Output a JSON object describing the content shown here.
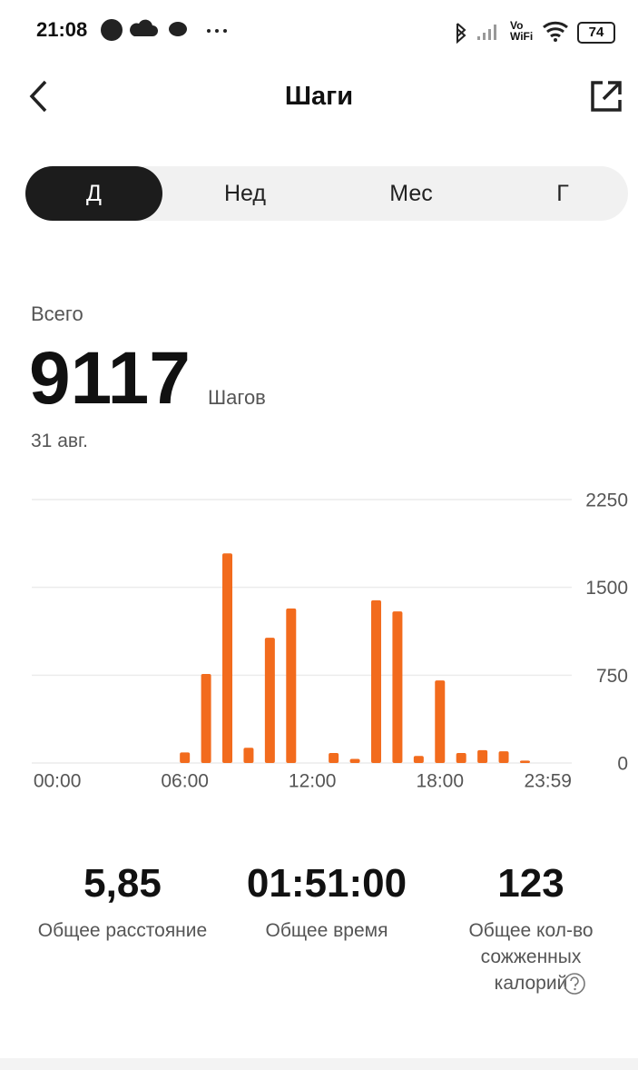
{
  "status_bar": {
    "time": "21:08",
    "network": "Vo WiFi",
    "battery": "74"
  },
  "header": {
    "title": "Шаги"
  },
  "tabs": [
    "Д",
    "Нед",
    "Мес",
    "Г"
  ],
  "summary": {
    "label": "Всего",
    "value": "9117",
    "unit": "Шагов",
    "date": "31 авг."
  },
  "chart_data": {
    "type": "bar",
    "x": [
      0,
      1,
      2,
      3,
      4,
      5,
      6,
      7,
      8,
      9,
      10,
      11,
      12,
      13,
      14,
      15,
      16,
      17,
      18,
      19,
      20,
      21,
      22,
      23
    ],
    "values": [
      0,
      0,
      0,
      0,
      0,
      0,
      90,
      760,
      1790,
      130,
      1070,
      1320,
      0,
      85,
      35,
      1390,
      1295,
      60,
      705,
      85,
      110,
      100,
      20,
      0
    ],
    "color": "#f26b1d",
    "xlim": [
      -1.2,
      24.2
    ],
    "xticks": [
      {
        "value": 0,
        "label": "00:00"
      },
      {
        "value": 6,
        "label": "06:00"
      },
      {
        "value": 12,
        "label": "12:00"
      },
      {
        "value": 18,
        "label": "18:00"
      },
      {
        "value": 23.983,
        "label": "23:59"
      }
    ],
    "ylim": [
      0,
      2250
    ],
    "yticks": [
      0,
      750,
      1500,
      2250
    ],
    "grid": true
  },
  "stats": [
    {
      "value": "5,85",
      "label": "Общее расстояние"
    },
    {
      "value": "01:51:00",
      "label": "Общее время"
    },
    {
      "value": "123",
      "label": "Общее кол-во сожженных калорий"
    }
  ]
}
